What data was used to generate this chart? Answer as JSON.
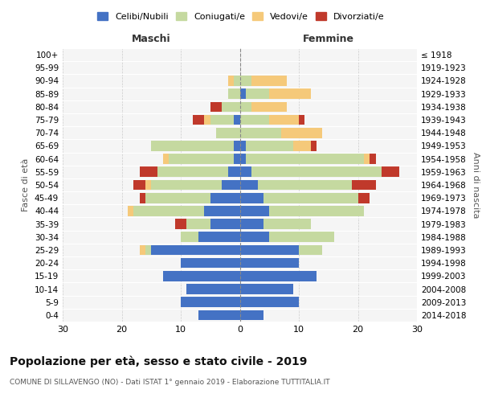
{
  "age_groups": [
    "0-4",
    "5-9",
    "10-14",
    "15-19",
    "20-24",
    "25-29",
    "30-34",
    "35-39",
    "40-44",
    "45-49",
    "50-54",
    "55-59",
    "60-64",
    "65-69",
    "70-74",
    "75-79",
    "80-84",
    "85-89",
    "90-94",
    "95-99",
    "100+"
  ],
  "birth_years": [
    "2014-2018",
    "2009-2013",
    "2004-2008",
    "1999-2003",
    "1994-1998",
    "1989-1993",
    "1984-1988",
    "1979-1983",
    "1974-1978",
    "1969-1973",
    "1964-1968",
    "1959-1963",
    "1954-1958",
    "1949-1953",
    "1944-1948",
    "1939-1943",
    "1934-1938",
    "1929-1933",
    "1924-1928",
    "1919-1923",
    "≤ 1918"
  ],
  "maschi": {
    "celibi": [
      7,
      10,
      9,
      13,
      10,
      15,
      7,
      5,
      6,
      5,
      3,
      2,
      1,
      1,
      0,
      1,
      0,
      0,
      0,
      0,
      0
    ],
    "coniugati": [
      0,
      0,
      0,
      0,
      0,
      1,
      3,
      4,
      12,
      11,
      12,
      12,
      11,
      14,
      4,
      4,
      3,
      2,
      1,
      0,
      0
    ],
    "vedovi": [
      0,
      0,
      0,
      0,
      0,
      1,
      0,
      0,
      1,
      0,
      1,
      0,
      1,
      0,
      0,
      1,
      0,
      0,
      1,
      0,
      0
    ],
    "divorziati": [
      0,
      0,
      0,
      0,
      0,
      0,
      0,
      2,
      0,
      1,
      2,
      3,
      0,
      0,
      0,
      2,
      2,
      0,
      0,
      0,
      0
    ]
  },
  "femmine": {
    "nubili": [
      4,
      10,
      9,
      13,
      10,
      10,
      5,
      4,
      5,
      4,
      3,
      2,
      1,
      1,
      0,
      0,
      0,
      1,
      0,
      0,
      0
    ],
    "coniugate": [
      0,
      0,
      0,
      0,
      0,
      4,
      11,
      8,
      16,
      16,
      16,
      22,
      20,
      8,
      7,
      5,
      2,
      4,
      2,
      0,
      0
    ],
    "vedove": [
      0,
      0,
      0,
      0,
      0,
      0,
      0,
      0,
      0,
      0,
      0,
      0,
      1,
      3,
      7,
      5,
      6,
      7,
      6,
      0,
      0
    ],
    "divorziate": [
      0,
      0,
      0,
      0,
      0,
      0,
      0,
      0,
      0,
      2,
      4,
      3,
      1,
      1,
      0,
      1,
      0,
      0,
      0,
      0,
      0
    ]
  },
  "colors": {
    "celibi_nubili": "#4472c4",
    "coniugati": "#c5d9a0",
    "vedovi": "#f5c97a",
    "divorziati": "#c0392b"
  },
  "xlim": 30,
  "title": "Popolazione per età, sesso e stato civile - 2019",
  "subtitle": "COMUNE DI SILLAVENGO (NO) - Dati ISTAT 1° gennaio 2019 - Elaborazione TUTTITALIA.IT",
  "xlabel_left": "Maschi",
  "xlabel_right": "Femmine",
  "ylabel_left": "Fasce di età",
  "ylabel_right": "Anni di nascita"
}
